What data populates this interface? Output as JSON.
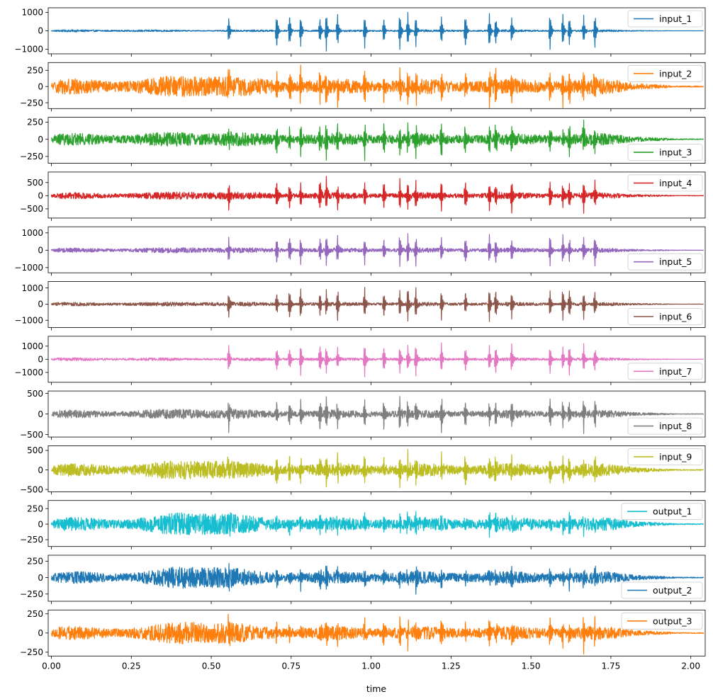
{
  "chart_data": {
    "type": "line",
    "xlabel": "time",
    "xlim": [
      -0.01,
      2.045
    ],
    "xticks": [
      0.0,
      0.25,
      0.5,
      0.75,
      1.0,
      1.25,
      1.5,
      1.75,
      2.0
    ],
    "xtick_labels": [
      "0.00",
      "0.25",
      "0.50",
      "0.75",
      "1.00",
      "1.25",
      "1.50",
      "1.75",
      "2.00"
    ],
    "spike_times": [
      0.555,
      0.705,
      0.745,
      0.78,
      0.84,
      0.86,
      0.895,
      0.98,
      1.04,
      1.09,
      1.115,
      1.14,
      1.22,
      1.295,
      1.37,
      1.39,
      1.44,
      1.56,
      1.6,
      1.62,
      1.665,
      1.7
    ],
    "series": [
      {
        "name": "input_1",
        "color": "#1f77b4",
        "legend": "top-right",
        "ylim": [
          -1250,
          1250
        ],
        "yticks": [
          -1000,
          0,
          1000
        ],
        "ytick_labels": [
          "−1000",
          "0",
          "1000"
        ],
        "noise": 55,
        "spike_amp": 1100,
        "hump": 0.6
      },
      {
        "name": "input_2",
        "color": "#ff7f0e",
        "legend": "top-right",
        "ylim": [
          -340,
          370
        ],
        "yticks": [
          -250,
          0,
          250
        ],
        "ytick_labels": [
          "−250",
          "0",
          "250"
        ],
        "noise": 110,
        "spike_amp": 320,
        "hump": 1.9
      },
      {
        "name": "input_3",
        "color": "#2ca02c",
        "legend": "bottom-right",
        "ylim": [
          -350,
          320
        ],
        "yticks": [
          -250,
          0,
          250
        ],
        "ytick_labels": [
          "−250",
          "0",
          "250"
        ],
        "noise": 80,
        "spike_amp": 280,
        "hump": 1.5
      },
      {
        "name": "input_4",
        "color": "#d62728",
        "legend": "top-right",
        "ylim": [
          -850,
          900
        ],
        "yticks": [
          -500,
          0,
          500
        ],
        "ytick_labels": [
          "−500",
          "0",
          "500"
        ],
        "noise": 110,
        "spike_amp": 700,
        "hump": 1.6
      },
      {
        "name": "input_5",
        "color": "#9467bd",
        "legend": "bottom-right",
        "ylim": [
          -1300,
          1350
        ],
        "yticks": [
          -1000,
          0,
          1000
        ],
        "ytick_labels": [
          "−1000",
          "0",
          "1000"
        ],
        "noise": 120,
        "spike_amp": 1000,
        "hump": 1.6
      },
      {
        "name": "input_6",
        "color": "#8c564b",
        "legend": "bottom-right",
        "ylim": [
          -1450,
          1400
        ],
        "yticks": [
          -1000,
          0,
          1000
        ],
        "ytick_labels": [
          "−1000",
          "0",
          "1000"
        ],
        "noise": 110,
        "spike_amp": 1150,
        "hump": 1.3
      },
      {
        "name": "input_7",
        "color": "#e377c2",
        "legend": "bottom-right",
        "ylim": [
          -1750,
          1750
        ],
        "yticks": [
          -1000,
          0,
          1000
        ],
        "ytick_labels": [
          "−1000",
          "0",
          "1000"
        ],
        "noise": 110,
        "spike_amp": 1350,
        "hump": 0.8
      },
      {
        "name": "input_8",
        "color": "#7f7f7f",
        "legend": "bottom-right",
        "ylim": [
          -560,
          560
        ],
        "yticks": [
          -500,
          0,
          500
        ],
        "ytick_labels": [
          "−500",
          "0",
          "500"
        ],
        "noise": 90,
        "spike_amp": 450,
        "hump": 1.6
      },
      {
        "name": "input_9",
        "color": "#bcbd22",
        "legend": "top-right",
        "ylim": [
          -560,
          620
        ],
        "yticks": [
          -500,
          0,
          500
        ],
        "ytick_labels": [
          "−500",
          "0",
          "500"
        ],
        "noise": 150,
        "spike_amp": 450,
        "hump": 2.1
      },
      {
        "name": "output_1",
        "color": "#17becf",
        "legend": "top-right",
        "ylim": [
          -360,
          380
        ],
        "yticks": [
          -250,
          0,
          250
        ],
        "ytick_labels": [
          "−250",
          "0",
          "250"
        ],
        "noise": 100,
        "spike_amp": 160,
        "hump": 2.4
      },
      {
        "name": "output_2",
        "color": "#1f77b4",
        "legend": "bottom-right",
        "ylim": [
          -360,
          340
        ],
        "yticks": [
          -250,
          0,
          250
        ],
        "ytick_labels": [
          "−250",
          "0",
          "250"
        ],
        "noise": 85,
        "spike_amp": 180,
        "hump": 2.6
      },
      {
        "name": "output_3",
        "color": "#ff7f0e",
        "legend": "top-right",
        "ylim": [
          -300,
          300
        ],
        "yticks": [
          -250,
          0,
          250
        ],
        "ytick_labels": [
          "−250",
          "0",
          "250"
        ],
        "noise": 80,
        "spike_amp": 200,
        "hump": 2.4
      }
    ]
  }
}
